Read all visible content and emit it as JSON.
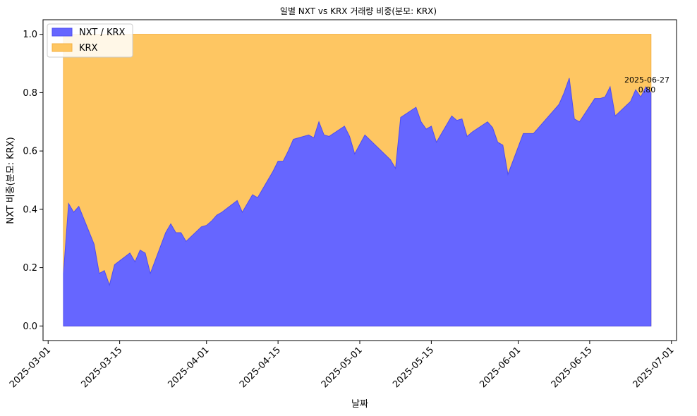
{
  "chart_data": {
    "type": "area",
    "title": "일별 NXT vs KRX 거래량 비중(분모: KRX)",
    "xlabel": "날짜",
    "ylabel": "NXT 비중(분모: KRX)",
    "ylim": [
      -0.05,
      1.05
    ],
    "xlim": [
      "2025-02-28",
      "2025-07-02"
    ],
    "x_ticks": [
      "2025-03-01",
      "2025-03-15",
      "2025-04-01",
      "2025-04-15",
      "2025-05-01",
      "2025-05-15",
      "2025-06-01",
      "2025-06-15",
      "2025-07-01"
    ],
    "y_ticks": [
      0.0,
      0.2,
      0.4,
      0.6,
      0.8,
      1.0
    ],
    "y_tick_labels": [
      "0.0",
      "0.2",
      "0.4",
      "0.6",
      "0.8",
      "1.0"
    ],
    "legend_position": "top-left",
    "grid": false,
    "series": [
      {
        "name": "NXT / KRX",
        "color": "#6666ff",
        "edge": "#4d4df2",
        "x": [
          "2025-03-04",
          "2025-03-05",
          "2025-03-06",
          "2025-03-07",
          "2025-03-10",
          "2025-03-11",
          "2025-03-12",
          "2025-03-13",
          "2025-03-14",
          "2025-03-17",
          "2025-03-18",
          "2025-03-19",
          "2025-03-20",
          "2025-03-21",
          "2025-03-24",
          "2025-03-25",
          "2025-03-26",
          "2025-03-27",
          "2025-03-28",
          "2025-03-31",
          "2025-04-01",
          "2025-04-02",
          "2025-04-03",
          "2025-04-04",
          "2025-04-07",
          "2025-04-08",
          "2025-04-09",
          "2025-04-10",
          "2025-04-11",
          "2025-04-14",
          "2025-04-15",
          "2025-04-16",
          "2025-04-17",
          "2025-04-18",
          "2025-04-21",
          "2025-04-22",
          "2025-04-23",
          "2025-04-24",
          "2025-04-25",
          "2025-04-28",
          "2025-04-29",
          "2025-04-30",
          "2025-05-02",
          "2025-05-07",
          "2025-05-08",
          "2025-05-09",
          "2025-05-12",
          "2025-05-13",
          "2025-05-14",
          "2025-05-15",
          "2025-05-16",
          "2025-05-19",
          "2025-05-20",
          "2025-05-21",
          "2025-05-22",
          "2025-05-23",
          "2025-05-26",
          "2025-05-27",
          "2025-05-28",
          "2025-05-29",
          "2025-05-30",
          "2025-06-02",
          "2025-06-04",
          "2025-06-05",
          "2025-06-09",
          "2025-06-10",
          "2025-06-11",
          "2025-06-12",
          "2025-06-13",
          "2025-06-16",
          "2025-06-17",
          "2025-06-18",
          "2025-06-19",
          "2025-06-20",
          "2025-06-23",
          "2025-06-24",
          "2025-06-25",
          "2025-06-26",
          "2025-06-27"
        ],
        "values": [
          0.18,
          0.42,
          0.39,
          0.41,
          0.28,
          0.18,
          0.19,
          0.14,
          0.21,
          0.25,
          0.22,
          0.26,
          0.25,
          0.18,
          0.32,
          0.35,
          0.32,
          0.32,
          0.29,
          0.34,
          0.345,
          0.36,
          0.38,
          0.39,
          0.43,
          0.39,
          0.42,
          0.45,
          0.44,
          0.53,
          0.565,
          0.565,
          0.6,
          0.64,
          0.655,
          0.645,
          0.7,
          0.655,
          0.65,
          0.685,
          0.65,
          0.59,
          0.655,
          0.57,
          0.54,
          0.715,
          0.75,
          0.7,
          0.675,
          0.685,
          0.63,
          0.72,
          0.705,
          0.71,
          0.65,
          0.665,
          0.7,
          0.68,
          0.63,
          0.62,
          0.52,
          0.66,
          0.66,
          0.68,
          0.76,
          0.8,
          0.85,
          0.71,
          0.7,
          0.78,
          0.78,
          0.785,
          0.82,
          0.72,
          0.77,
          0.81,
          0.785,
          0.82,
          0.8
        ]
      },
      {
        "name": "KRX",
        "color": "#fec662",
        "edge": "#f5b040",
        "values_constant": 1.0
      }
    ],
    "annotation": {
      "date": "2025-06-27",
      "value": 0.8,
      "text_line1": "2025-06-27",
      "text_line2": "0.80"
    }
  }
}
